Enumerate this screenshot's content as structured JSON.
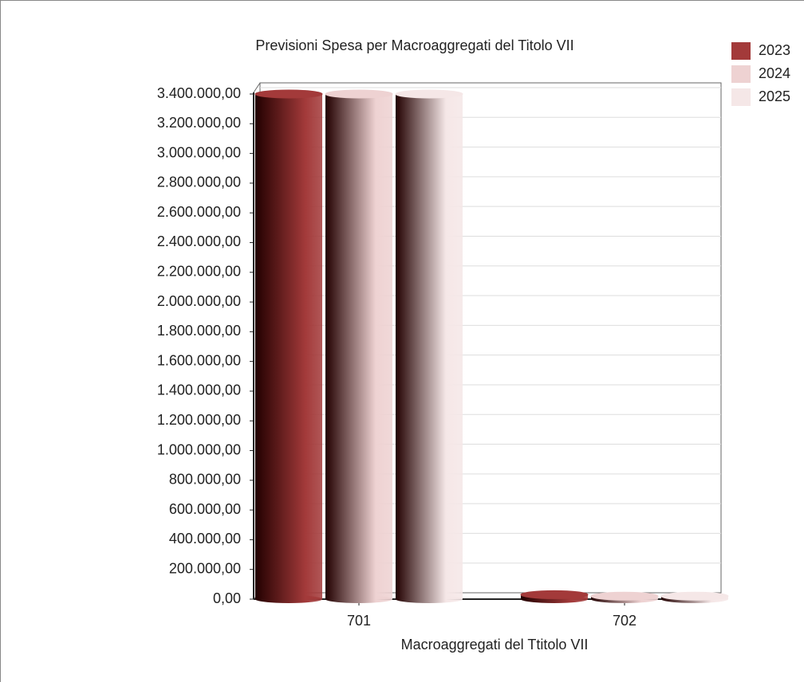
{
  "chart_data": {
    "type": "bar",
    "title": "Previsioni Spesa per Macroaggregati del Titolo VII",
    "x_label": "Macroaggregati del Ttitolo VII",
    "categories": [
      "701",
      "702"
    ],
    "series": [
      {
        "name": "2023",
        "color": "#a33a3a",
        "values": [
          3400000,
          30000
        ]
      },
      {
        "name": "2024",
        "color": "#eed2d2",
        "values": [
          3400000,
          20000
        ]
      },
      {
        "name": "2025",
        "color": "#f5e7e7",
        "values": [
          3400000,
          20000
        ]
      }
    ],
    "ylim": [
      0,
      3400000
    ],
    "yticks": [
      {
        "value": 0,
        "label": "0,00"
      },
      {
        "value": 200000,
        "label": "200.000,00"
      },
      {
        "value": 400000,
        "label": "400.000,00"
      },
      {
        "value": 600000,
        "label": "600.000,00"
      },
      {
        "value": 800000,
        "label": "800.000,00"
      },
      {
        "value": 1000000,
        "label": "1.000.000,00"
      },
      {
        "value": 1200000,
        "label": "1.200.000,00"
      },
      {
        "value": 1400000,
        "label": "1.400.000,00"
      },
      {
        "value": 1600000,
        "label": "1.600.000,00"
      },
      {
        "value": 1800000,
        "label": "1.800.000,00"
      },
      {
        "value": 2000000,
        "label": "2.000.000,00"
      },
      {
        "value": 2200000,
        "label": "2.200.000,00"
      },
      {
        "value": 2400000,
        "label": "2.400.000,00"
      },
      {
        "value": 2600000,
        "label": "2.600.000,00"
      },
      {
        "value": 2800000,
        "label": "2.800.000,00"
      },
      {
        "value": 3000000,
        "label": "3.000.000,00"
      },
      {
        "value": 3200000,
        "label": "3.200.000,00"
      },
      {
        "value": 3400000,
        "label": "3.400.000,00"
      }
    ],
    "grid": true,
    "legend": "top-right"
  }
}
